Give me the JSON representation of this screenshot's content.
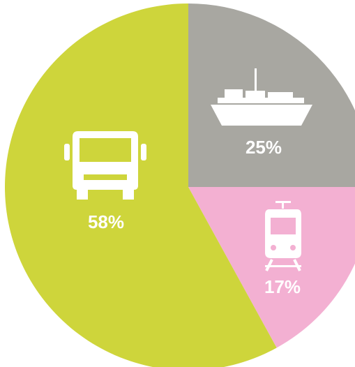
{
  "chart_data": {
    "type": "pie",
    "categories": [
      "25%",
      "17%",
      "58%"
    ],
    "values": [
      25,
      17,
      58
    ],
    "colors": [
      "#a8a7a1",
      "#f3b0d2",
      "#ced53b"
    ]
  }
}
